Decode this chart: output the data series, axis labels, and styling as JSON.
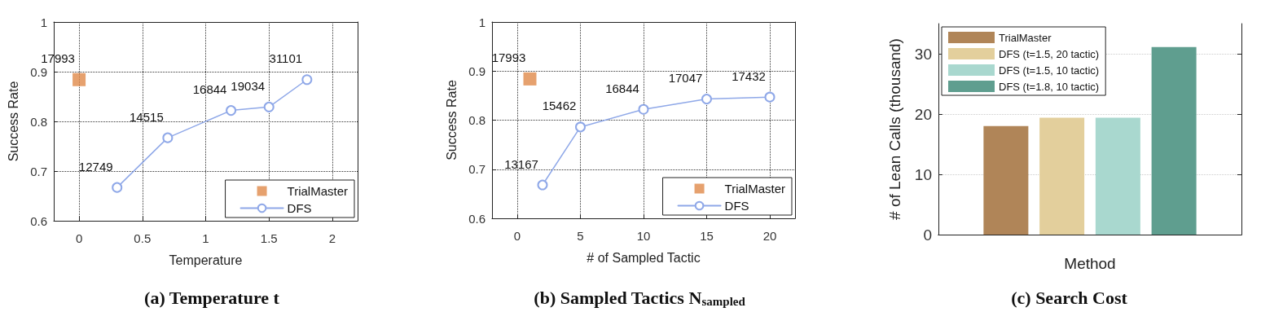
{
  "chart_data": [
    {
      "type": "line",
      "title": "(a) Temperature t",
      "xlabel": "Temperature",
      "ylabel": "Success Rate",
      "xlim": [
        -0.2,
        2.2
      ],
      "xticks": [
        0,
        0.5,
        1,
        1.5,
        2
      ],
      "ylim": [
        0.6,
        1
      ],
      "yticks": [
        0.6,
        0.7,
        0.8,
        0.9,
        1
      ],
      "grid": true,
      "legend": "bottom right",
      "series": [
        {
          "name": "TrialMaster",
          "type": "scatter",
          "marker": "square",
          "color": "#e0894a",
          "x": [
            0
          ],
          "values": [
            0.884
          ]
        },
        {
          "name": "DFS",
          "type": "line",
          "marker": "circle",
          "line_style": "solid",
          "color": "#8fa8e8",
          "x": [
            0.3,
            0.7,
            1.2,
            1.5,
            1.8
          ],
          "values": [
            0.667,
            0.767,
            0.822,
            0.829,
            0.884
          ]
        }
      ],
      "annotations": [
        {
          "text": "17993",
          "x": 0,
          "y": 0.884
        },
        {
          "text": "12749",
          "x": 0.3,
          "y": 0.667
        },
        {
          "text": "14515",
          "x": 0.7,
          "y": 0.767
        },
        {
          "text": "16844",
          "x": 1.2,
          "y": 0.822
        },
        {
          "text": "19034",
          "x": 1.5,
          "y": 0.829
        },
        {
          "text": "31101",
          "x": 1.8,
          "y": 0.884
        }
      ]
    },
    {
      "type": "line",
      "title": "(b) Sampled Tactics N$_{sampled}$",
      "xlabel": "# of Sampled Tactic",
      "ylabel": "Success Rate",
      "xlim": [
        -2,
        22
      ],
      "xticks": [
        0,
        5,
        10,
        15,
        20
      ],
      "ylim": [
        0.6,
        1
      ],
      "yticks": [
        0.6,
        0.7,
        0.8,
        0.9,
        1
      ],
      "grid": true,
      "legend": "bottom right",
      "series": [
        {
          "name": "TrialMaster",
          "type": "scatter",
          "marker": "square",
          "color": "#e0894a",
          "x": [
            1
          ],
          "values": [
            0.884
          ]
        },
        {
          "name": "DFS",
          "type": "line",
          "marker": "circle",
          "line_style": "solid",
          "color": "#8fa8e8",
          "x": [
            2,
            5,
            10,
            15,
            20
          ],
          "values": [
            0.668,
            0.786,
            0.822,
            0.843,
            0.847
          ]
        }
      ],
      "annotations": [
        {
          "text": "17993",
          "x": 1,
          "y": 0.884
        },
        {
          "text": "13167",
          "x": 2,
          "y": 0.668
        },
        {
          "text": "15462",
          "x": 5,
          "y": 0.786
        },
        {
          "text": "16844",
          "x": 10,
          "y": 0.822
        },
        {
          "text": "17047",
          "x": 15,
          "y": 0.843
        },
        {
          "text": "17432",
          "x": 20,
          "y": 0.847
        }
      ]
    },
    {
      "type": "bar",
      "title": "(c) Search Cost",
      "xlabel": "Method",
      "ylabel": "# of Lean Calls (thousand)",
      "categories": [
        null
      ],
      "ylim": [
        0,
        35
      ],
      "yticks": [
        0,
        10,
        20,
        30
      ],
      "grid": "y",
      "legend": "top left",
      "series": [
        {
          "name": "TrialMaster",
          "color": "#b08558",
          "values": [
            18.0
          ]
        },
        {
          "name": "DFS (t=1.5, 20 tactic)",
          "color": "#e3cf9c",
          "values": [
            19.4
          ]
        },
        {
          "name": "DFS (t=1.5, 10 tactic)",
          "color": "#a9d8cf",
          "values": [
            19.4
          ]
        },
        {
          "name": "DFS (t=1.8, 10 tactic)",
          "color": "#5f9e8f",
          "values": [
            31.1
          ]
        }
      ]
    }
  ]
}
